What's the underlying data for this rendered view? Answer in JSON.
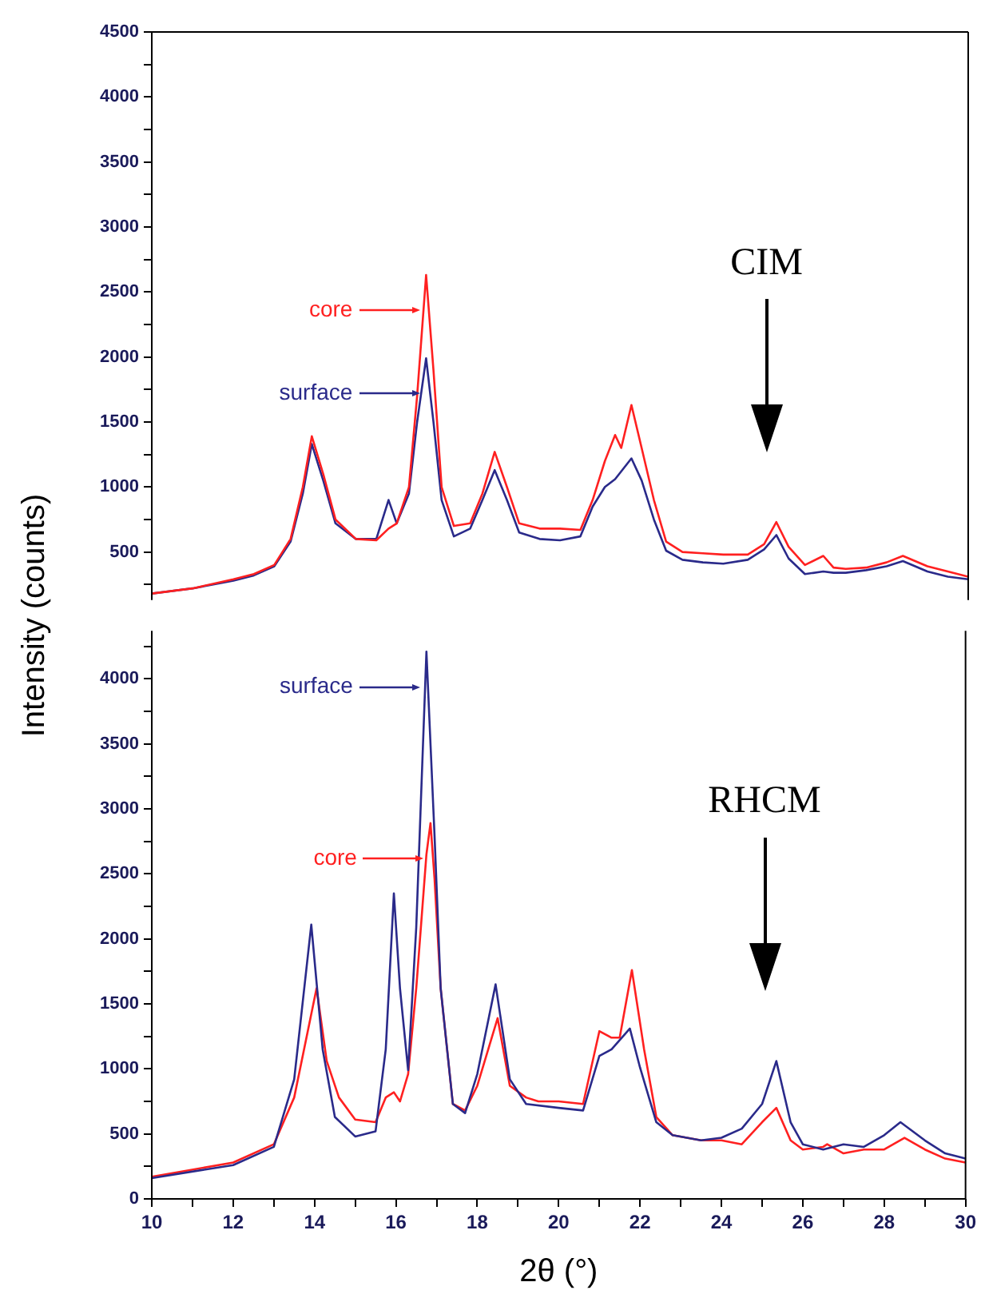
{
  "chart_data": [
    {
      "type": "line",
      "ylabel": "Intensity (counts)",
      "xlim": [
        10,
        30
      ],
      "ylim": [
        130,
        4500
      ],
      "tick_labels": "y",
      "legend": "left",
      "yticks": [
        {
          "value": 250,
          "label": null
        },
        500,
        {
          "value": 750,
          "label": null
        },
        1000,
        {
          "value": 1250,
          "label": null
        },
        1500,
        {
          "value": 1750,
          "label": null
        },
        2000,
        {
          "value": 2250,
          "label": null
        },
        2500,
        {
          "value": 2750,
          "label": null
        },
        3000,
        {
          "value": 3250,
          "label": null
        },
        3500,
        {
          "value": 3750,
          "label": null
        },
        4000,
        {
          "value": 4250,
          "label": null
        },
        4500
      ],
      "annotations": [
        "CIM"
      ],
      "series": [
        {
          "name": "core",
          "color": "#ff2020",
          "x": [
            10,
            11,
            12,
            12.5,
            13,
            13.4,
            13.7,
            13.92,
            14.2,
            14.5,
            15,
            15.5,
            15.8,
            16,
            16.3,
            16.5,
            16.72,
            16.9,
            17.1,
            17.4,
            17.8,
            18.1,
            18.4,
            18.7,
            19,
            19.5,
            20,
            20.5,
            20.8,
            21.1,
            21.35,
            21.5,
            21.75,
            22,
            22.3,
            22.6,
            23,
            23.5,
            24,
            24.6,
            25,
            25.3,
            25.6,
            26,
            26.45,
            26.7,
            27,
            27.5,
            28,
            28.4,
            29,
            29.5,
            30
          ],
          "values": [
            180,
            220,
            290,
            330,
            400,
            600,
            1000,
            1390,
            1100,
            750,
            600,
            590,
            680,
            720,
            1000,
            1700,
            2630,
            1900,
            1000,
            700,
            720,
            950,
            1270,
            1000,
            720,
            680,
            680,
            670,
            900,
            1200,
            1400,
            1300,
            1630,
            1300,
            900,
            580,
            500,
            490,
            480,
            480,
            560,
            730,
            540,
            400,
            470,
            380,
            370,
            380,
            420,
            470,
            390,
            350,
            310
          ]
        },
        {
          "name": "surface",
          "color": "#2a2a8a",
          "x": [
            10,
            11,
            12,
            12.5,
            13,
            13.4,
            13.7,
            13.92,
            14.2,
            14.5,
            15,
            15.5,
            15.8,
            16,
            16.3,
            16.5,
            16.72,
            16.9,
            17.1,
            17.4,
            17.8,
            18.1,
            18.4,
            18.7,
            19,
            19.5,
            20,
            20.5,
            20.8,
            21.1,
            21.35,
            21.5,
            21.75,
            22,
            22.3,
            22.6,
            23,
            23.5,
            24,
            24.6,
            25,
            25.3,
            25.6,
            26,
            26.45,
            26.7,
            27,
            27.5,
            28,
            28.4,
            29,
            29.5,
            30
          ],
          "values": [
            180,
            220,
            280,
            320,
            390,
            580,
            950,
            1330,
            1050,
            720,
            600,
            600,
            900,
            720,
            950,
            1500,
            1990,
            1500,
            900,
            620,
            680,
            900,
            1130,
            900,
            650,
            600,
            590,
            620,
            850,
            1000,
            1060,
            1120,
            1220,
            1050,
            750,
            510,
            440,
            420,
            410,
            440,
            520,
            630,
            450,
            330,
            350,
            340,
            340,
            360,
            390,
            430,
            350,
            310,
            290
          ]
        }
      ]
    },
    {
      "type": "line",
      "xlabel": "2θ (°)",
      "xlim": [
        10,
        30
      ],
      "ylim": [
        0,
        4370
      ],
      "legend": "top left",
      "xticks": [
        10,
        {
          "value": 11,
          "label": null
        },
        12,
        {
          "value": 13,
          "label": null
        },
        14,
        {
          "value": 15,
          "label": null
        },
        16,
        {
          "value": 17,
          "label": null
        },
        18,
        {
          "value": 19,
          "label": null
        },
        20,
        {
          "value": 21,
          "label": null
        },
        22,
        {
          "value": 23,
          "label": null
        },
        24,
        {
          "value": 25,
          "label": null
        },
        26,
        {
          "value": 27,
          "label": null
        },
        28,
        {
          "value": 29,
          "label": null
        },
        30
      ],
      "yticks": [
        0,
        {
          "value": 250,
          "label": null
        },
        500,
        {
          "value": 750,
          "label": null
        },
        1000,
        {
          "value": 1250,
          "label": null
        },
        1500,
        {
          "value": 1750,
          "label": null
        },
        2000,
        {
          "value": 2250,
          "label": null
        },
        2500,
        {
          "value": 2750,
          "label": null
        },
        3000,
        {
          "value": 3250,
          "label": null
        },
        3500,
        {
          "value": 3750,
          "label": null
        },
        4000,
        {
          "value": 4250,
          "label": null
        }
      ],
      "annotations": [
        "RHCM"
      ],
      "series": [
        {
          "name": "surface",
          "color": "#2a2a8a",
          "x": [
            10,
            12,
            13,
            13.5,
            13.92,
            14.2,
            14.5,
            15,
            15.5,
            15.75,
            15.95,
            16.1,
            16.3,
            16.5,
            16.75,
            16.95,
            17.1,
            17.4,
            17.7,
            18,
            18.45,
            18.8,
            19.2,
            20,
            20.6,
            21,
            21.3,
            21.75,
            22,
            22.4,
            22.8,
            23.5,
            24,
            24.5,
            25,
            25.35,
            25.7,
            26,
            26.5,
            27,
            27.5,
            28,
            28.4,
            29,
            29.5,
            30
          ],
          "values": [
            160,
            260,
            400,
            920,
            2110,
            1150,
            630,
            480,
            520,
            1150,
            2350,
            1620,
            990,
            2090,
            4210,
            2790,
            1620,
            730,
            660,
            960,
            1650,
            920,
            730,
            700,
            680,
            1100,
            1150,
            1310,
            1010,
            590,
            490,
            450,
            470,
            540,
            730,
            1060,
            590,
            420,
            380,
            420,
            400,
            490,
            590,
            450,
            350,
            310
          ]
        },
        {
          "name": "core",
          "color": "#ff2020",
          "x": [
            10,
            12,
            13,
            13.5,
            14.05,
            14.3,
            14.6,
            15,
            15.5,
            15.75,
            15.95,
            16.1,
            16.3,
            16.5,
            16.75,
            16.85,
            16.95,
            17.1,
            17.4,
            17.7,
            18,
            18.5,
            18.8,
            19.2,
            19.5,
            20,
            20.6,
            21,
            21.3,
            21.5,
            21.8,
            22.1,
            22.4,
            22.8,
            23.5,
            24,
            24.5,
            25,
            25.35,
            25.7,
            26,
            26.5,
            26.6,
            27,
            27.5,
            28,
            28.5,
            29,
            29.5,
            30
          ],
          "values": [
            170,
            280,
            420,
            780,
            1620,
            1060,
            780,
            610,
            590,
            780,
            820,
            750,
            960,
            1620,
            2650,
            2890,
            2460,
            1620,
            730,
            680,
            870,
            1390,
            870,
            780,
            750,
            750,
            730,
            1290,
            1240,
            1240,
            1760,
            1150,
            630,
            490,
            450,
            450,
            420,
            590,
            700,
            450,
            380,
            400,
            420,
            350,
            380,
            380,
            470,
            380,
            310,
            280
          ]
        }
      ]
    }
  ]
}
